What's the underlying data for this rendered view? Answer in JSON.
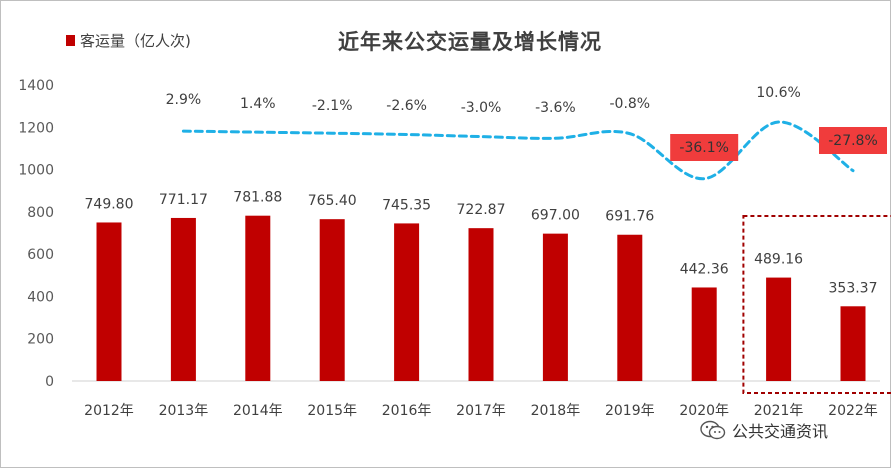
{
  "chart_data": {
    "type": "bar",
    "title": "近年来公交运量及增长情况",
    "categories": [
      "2012年",
      "2013年",
      "2014年",
      "2015年",
      "2016年",
      "2017年",
      "2018年",
      "2019年",
      "2020年",
      "2021年",
      "2022年"
    ],
    "series": [
      {
        "name": "客运量（亿人次)",
        "type": "bar",
        "values": [
          749.8,
          771.17,
          781.88,
          765.4,
          745.35,
          722.87,
          697.0,
          691.76,
          442.36,
          489.16,
          353.37
        ],
        "value_labels": [
          "749.80",
          "771.17",
          "781.88",
          "765.40",
          "745.35",
          "722.87",
          "697.00",
          "691.76",
          "442.36",
          "489.16",
          "353.37"
        ],
        "color": "#c00000"
      },
      {
        "type": "line",
        "style": "dashed smooth",
        "color": "#1fb0e6",
        "labels": [
          "",
          "2.9%",
          "1.4%",
          "-2.1%",
          "-2.6%",
          "-3.0%",
          "-3.6%",
          "-0.8%",
          "-36.1%",
          "10.6%",
          "-27.8%"
        ],
        "highlighted_labels": [
          "-36.1%",
          "-27.8%"
        ],
        "highlight_color": "#f03c3c"
      }
    ],
    "yticks": [
      "0",
      "200",
      "400",
      "600",
      "800",
      "1000",
      "1200",
      "1400"
    ],
    "ylim": [
      0,
      1400
    ],
    "grid": false,
    "legend_position": "top-left",
    "highlight_box": {
      "categories": [
        "2021年",
        "2022年"
      ],
      "style": "dashed",
      "color": "#a00000"
    }
  },
  "watermark": {
    "icon": "wechat-icon",
    "text": "公共交通资讯"
  }
}
